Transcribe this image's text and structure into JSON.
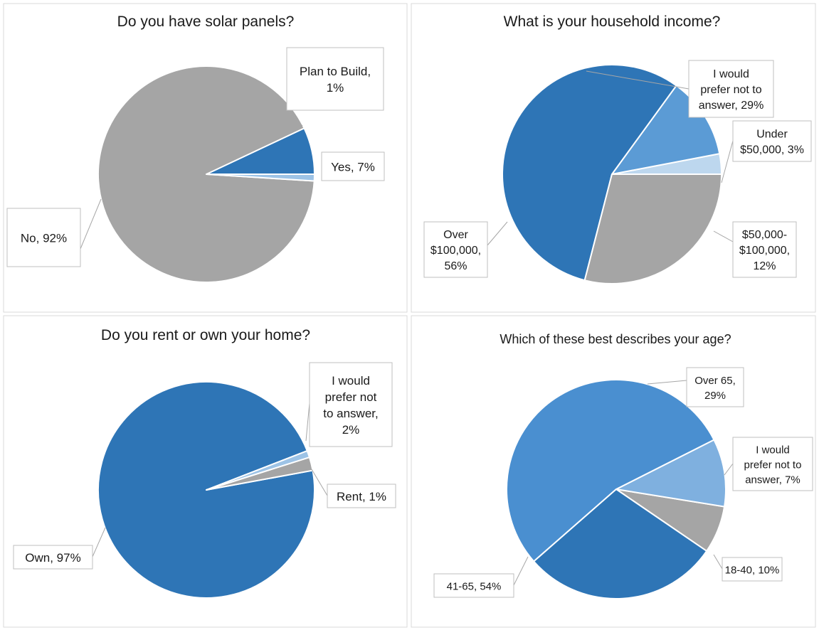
{
  "chart_data": [
    {
      "type": "pie",
      "title": "Do you have solar panels?",
      "slices": [
        {
          "name": "Yes",
          "value": 7,
          "label": [
            "Yes, 7%"
          ],
          "color": "#2e75b6"
        },
        {
          "name": "No",
          "value": 92,
          "label": [
            "No, 92%"
          ],
          "color": "#a5a5a5"
        },
        {
          "name": "Plan to Build",
          "value": 1,
          "label": [
            "Plan to Build,",
            "1%"
          ],
          "color": "#9dc3e6"
        }
      ]
    },
    {
      "type": "pie",
      "title": "What is your household income?",
      "slices": [
        {
          "name": "Under $50,000",
          "value": 3,
          "label": [
            "Under",
            "$50,000, 3%"
          ],
          "color": "#bdd7ee"
        },
        {
          "name": "$50,000-$100,000",
          "value": 12,
          "label": [
            "$50,000-",
            "$100,000,",
            "12%"
          ],
          "color": "#5b9bd5"
        },
        {
          "name": "Over $100,000",
          "value": 56,
          "label": [
            "Over",
            "$100,000,",
            "56%"
          ],
          "color": "#2e75b6"
        },
        {
          "name": "I would prefer not to answer",
          "value": 29,
          "label": [
            "I would",
            "prefer not to",
            "answer, 29%"
          ],
          "color": "#a5a5a5"
        }
      ]
    },
    {
      "type": "pie",
      "title": "Do you rent or own your home?",
      "slices": [
        {
          "name": "Own",
          "value": 97,
          "label": [
            "Own, 97%"
          ],
          "color": "#2e75b6"
        },
        {
          "name": "I would prefer not to answer",
          "value": 2,
          "label": [
            "I would",
            "prefer not",
            "to answer,",
            "2%"
          ],
          "color": "#a5a5a5"
        },
        {
          "name": "Rent",
          "value": 1,
          "label": [
            "Rent, 1%"
          ],
          "color": "#9dc3e6"
        }
      ]
    },
    {
      "type": "pie",
      "title": "Which of these best describes your age?",
      "slices": [
        {
          "name": "I would prefer not to answer",
          "value": 7,
          "label": [
            "I would",
            "prefer not to",
            "answer, 7%"
          ],
          "color": "#a5a5a5"
        },
        {
          "name": "18-40",
          "value": 10,
          "label": [
            "18-40, 10%"
          ],
          "color": "#7fb0df"
        },
        {
          "name": "41-65",
          "value": 54,
          "label": [
            "41-65, 54%"
          ],
          "color": "#4a8fd0"
        },
        {
          "name": "Over 65",
          "value": 29,
          "label": [
            "Over 65,",
            "29%"
          ],
          "color": "#2e75b6"
        }
      ]
    }
  ]
}
